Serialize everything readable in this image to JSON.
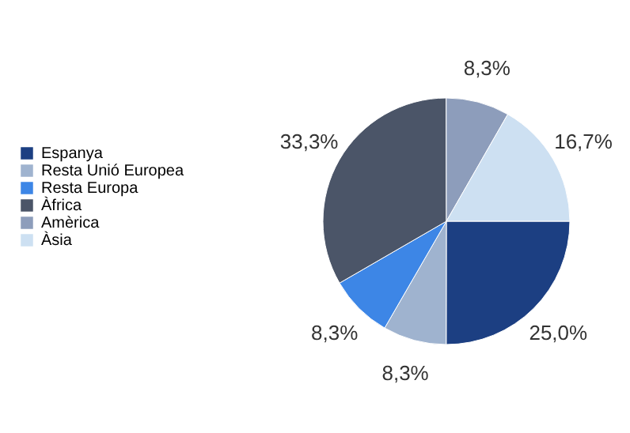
{
  "chart_data": {
    "type": "pie",
    "categories": [
      "Espanya",
      "Resta Unió Europea",
      "Resta Europa",
      "Àfrica",
      "Amèrica",
      "Àsia"
    ],
    "values": [
      25.0,
      8.3,
      8.3,
      33.3,
      8.3,
      16.7
    ],
    "colors": [
      "#1c3f82",
      "#9fb3cf",
      "#3d86e6",
      "#4b5568",
      "#8d9dbb",
      "#cde0f2"
    ],
    "value_labels": [
      "25,0%",
      "8,3%",
      "8,3%",
      "33,3%",
      "8,3%",
      "16,7%"
    ],
    "legend": "left"
  }
}
